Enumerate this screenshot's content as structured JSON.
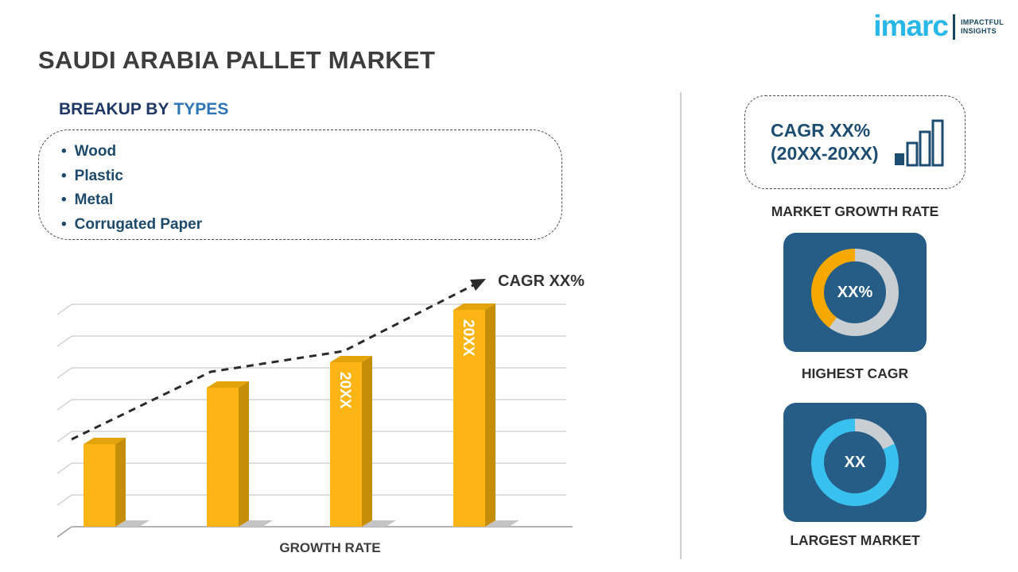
{
  "brand": {
    "logo_text": "imarc",
    "tagline_line1": "IMPACTFUL",
    "tagline_line2": "INSIGHTS",
    "logo_color": "#29b7e8",
    "navy": "#1d4d70"
  },
  "title": "SAUDI ARABIA PALLET MARKET",
  "breakup": {
    "heading_prefix": "BREAKUP BY",
    "heading_highlight": "TYPES",
    "items": [
      "Wood",
      "Plastic",
      "Metal",
      "Corrugated Paper"
    ]
  },
  "right_panel": {
    "cagr_line1": "CAGR XX%",
    "cagr_line2": "(20XX-20XX)",
    "market_growth_rate_label": "MARKET GROWTH RATE",
    "highest_cagr_label": "HIGHEST CAGR",
    "largest_market_label": "LARGEST MARKET"
  },
  "chart_data": [
    {
      "type": "bar",
      "title": "",
      "categories": [
        "",
        "",
        "20XX",
        "20XX"
      ],
      "values_relative": [
        0.38,
        0.64,
        0.76,
        1.0
      ],
      "grid": true,
      "xlabel": "GROWTH RATE",
      "ylabel": "",
      "annotation": "CAGR XX%",
      "bar_color": "#fdb515",
      "bar_side_color": "#c68e08",
      "bar_top_color": "#e2a30b"
    },
    {
      "type": "donut",
      "label": "HIGHEST CAGR",
      "center_text": "XX%",
      "filled_percent": 40,
      "color": "#f5a800",
      "track_color": "#c9ced3"
    },
    {
      "type": "donut",
      "label": "LARGEST MARKET",
      "center_text": "XX",
      "filled_percent": 82,
      "color": "#38c1ef",
      "track_color": "#c9ced3"
    }
  ]
}
